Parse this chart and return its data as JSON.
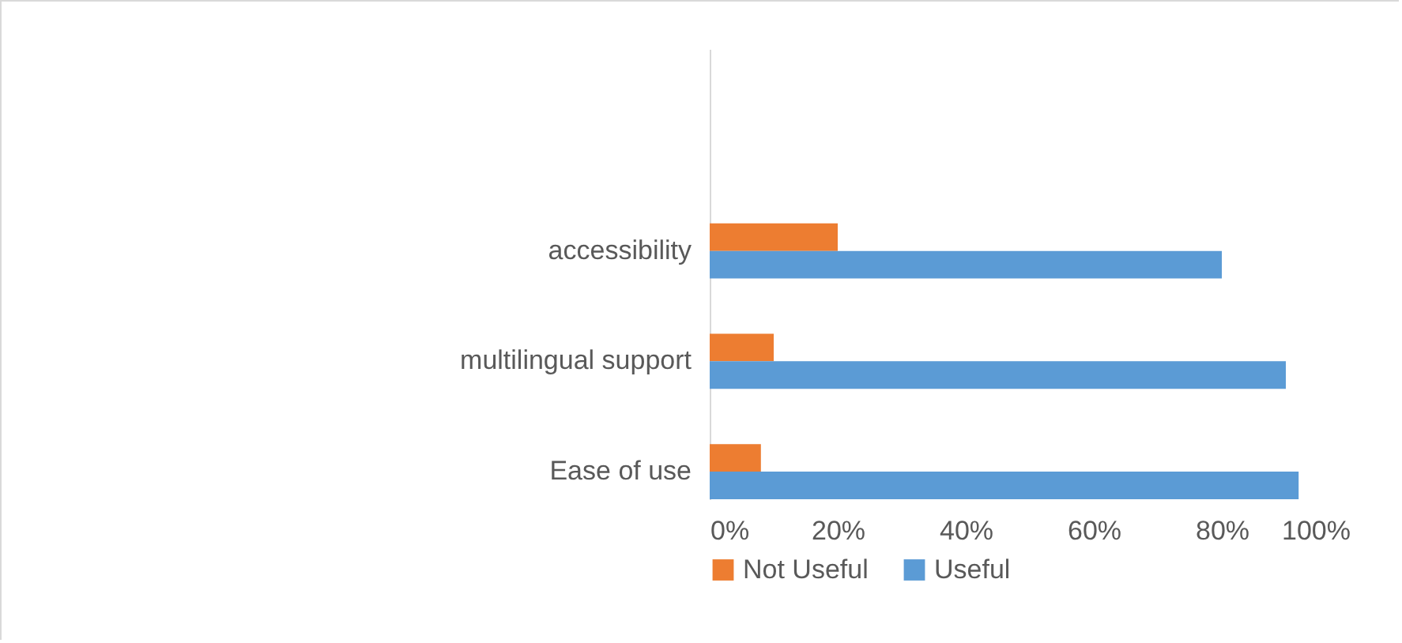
{
  "chart_data": {
    "type": "bar",
    "orientation": "horizontal",
    "categories": [
      "accessibility",
      "multilingual support",
      "Ease of use"
    ],
    "series": [
      {
        "name": "Not Useful",
        "color": "#ed7d31",
        "values": [
          20,
          10,
          8
        ]
      },
      {
        "name": "Useful",
        "color": "#5b9bd5",
        "values": [
          80,
          90,
          92
        ]
      }
    ],
    "xlim": [
      0,
      100
    ],
    "xticks": [
      {
        "value": 0,
        "label": "0%"
      },
      {
        "value": 20,
        "label": "20%"
      },
      {
        "value": 40,
        "label": "40%"
      },
      {
        "value": 60,
        "label": "60%"
      },
      {
        "value": 80,
        "label": "80%"
      },
      {
        "value": 100,
        "label": "100%"
      }
    ],
    "grid": false,
    "legend": "bottom"
  }
}
